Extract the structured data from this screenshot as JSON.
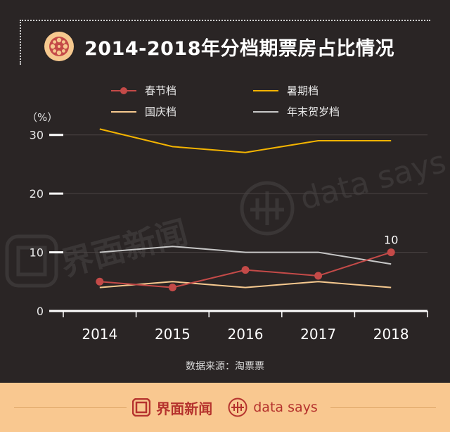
{
  "header": {
    "title": "2014-2018年分档期票房占比情况"
  },
  "unit_label": "（%）",
  "source_label": "数据来源：淘票票",
  "watermark": {
    "brand_cn": "界面新闻",
    "brand_en": "data says"
  },
  "footer": {
    "brand_cn": "界面新闻",
    "brand_en": "data says"
  },
  "colors": {
    "background": "#2a2525",
    "spring": "#c44a48",
    "summer": "#f4b400",
    "national": "#f6c98f",
    "newyear": "#c8c8c8",
    "footer_bg": "#f9c890",
    "brand": "#b5322d"
  },
  "chart_data": {
    "type": "line",
    "x": [
      "2014",
      "2015",
      "2016",
      "2017",
      "2018"
    ],
    "ylim": [
      0,
      30
    ],
    "yticks": [
      0,
      10,
      20,
      30
    ],
    "grid": true,
    "legend_position": "top",
    "series": [
      {
        "name": "春节档",
        "values": [
          5,
          4,
          7,
          6,
          10
        ],
        "markers": true
      },
      {
        "name": "暑期档",
        "values": [
          31,
          28,
          27,
          29,
          29
        ],
        "markers": false
      },
      {
        "name": "国庆档",
        "values": [
          4,
          5,
          4,
          5,
          4
        ],
        "markers": false
      },
      {
        "name": "年末贺岁档",
        "values": [
          10,
          11,
          10,
          10,
          8
        ],
        "markers": false
      }
    ],
    "annotations": [
      {
        "series": "春节档",
        "x": "2018",
        "text": "10"
      }
    ]
  }
}
